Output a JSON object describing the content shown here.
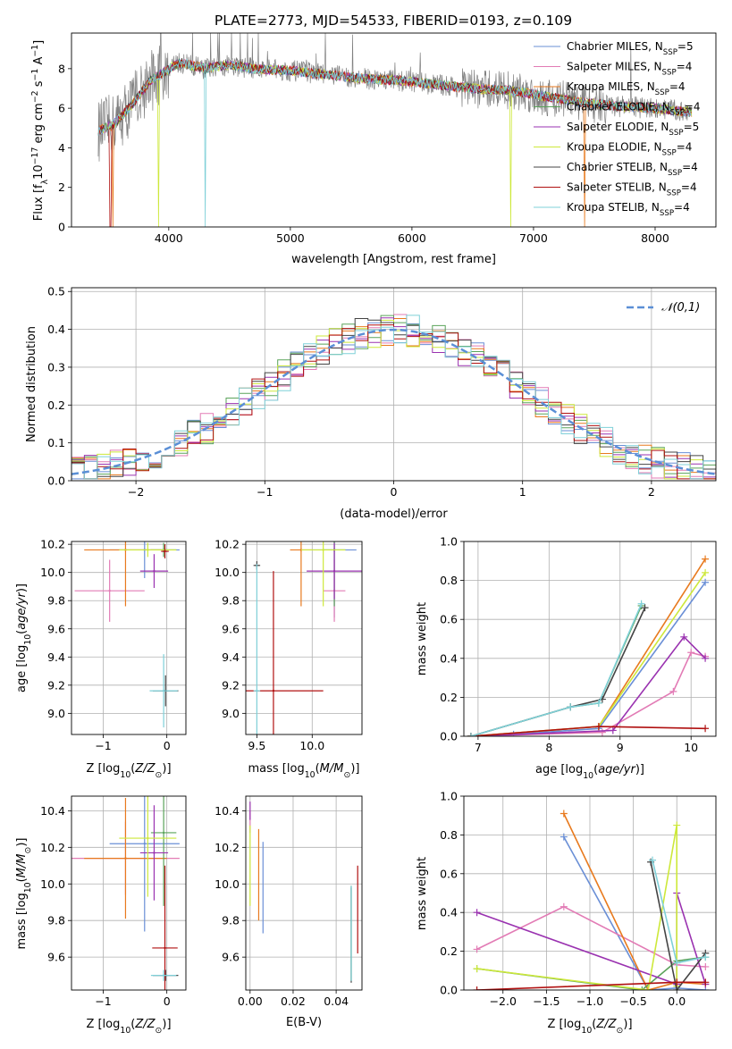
{
  "title": "PLATE=2773, MJD=54533, FIBERID=0193, z=0.109",
  "colors": {
    "chabrier_miles": "#6a8fd6",
    "salpeter_miles": "#e27bb5",
    "kroupa_miles": "#e87a1e",
    "chabrier_elodie": "#5aa35a",
    "salpeter_elodie": "#9a32b0",
    "kroupa_elodie": "#cde83a",
    "chabrier_stelib": "#444444",
    "salpeter_stelib": "#b01010",
    "kroupa_stelib": "#7fd0d8",
    "data": "#808080",
    "normal": "#5b8fd6",
    "grid": "#b0b0b0"
  },
  "chart_data": [
    {
      "type": "line",
      "id": "spectrum",
      "title": "PLATE=2773, MJD=54533, FIBERID=0193, z=0.109",
      "xlabel": "wavelength [Angstrom, rest frame]",
      "ylabel": "Flux [f_λ 10^-17 erg cm^-2 s^-1 A^-1]",
      "xlim": [
        3200,
        8500
      ],
      "ylim": [
        0,
        9.8
      ],
      "xticks": [
        4000,
        5000,
        6000,
        7000,
        8000
      ],
      "yticks": [
        0,
        2,
        4,
        6,
        8
      ],
      "grid": false,
      "legend_position": "top-right",
      "legend": [
        "Chabrier MILES, N_SSP=5",
        "Salpeter MILES, N_SSP=4",
        "Kroupa MILES, N_SSP=4",
        "Chabrier ELODIE, N_SSP=4",
        "Salpeter ELODIE, N_SSP=5",
        "Kroupa ELODIE, N_SSP=4",
        "Chabrier STELIB, N_SSP=4",
        "Salpeter STELIB, N_SSP=4",
        "Kroupa STELIB, N_SSP=4"
      ],
      "continuum": {
        "x": [
          3400,
          3550,
          3700,
          3850,
          4000,
          4100,
          4300,
          4500,
          4700,
          5000,
          5300,
          5600,
          5900,
          6200,
          6500,
          6800,
          7100,
          7400,
          7700,
          8000,
          8300
        ],
        "y": [
          4.8,
          5.2,
          6.2,
          7.4,
          8.0,
          8.3,
          8.0,
          8.2,
          8.0,
          7.9,
          7.7,
          7.5,
          7.4,
          7.2,
          7.0,
          6.9,
          6.6,
          6.3,
          6.1,
          6.0,
          5.8
        ]
      }
    },
    {
      "type": "histogram",
      "id": "residuals",
      "xlabel": "(data-model)/error",
      "ylabel": "Normed distribution",
      "xlim": [
        -2.5,
        2.5
      ],
      "ylim": [
        0,
        0.51
      ],
      "xticks": [
        -2,
        -1,
        0,
        1,
        2
      ],
      "yticks": [
        0.0,
        0.1,
        0.2,
        0.3,
        0.4,
        0.5
      ],
      "grid": true,
      "legend_position": "top-right",
      "legend": [
        "𝒩(0,1)"
      ],
      "normal_curve": {
        "mean": 0,
        "sigma": 1
      }
    },
    {
      "type": "scatter",
      "id": "age-vs-Z",
      "xlabel": "Z [log10(Z/Z⊙)]",
      "ylabel": "age [log10(age/yr)]",
      "xlim": [
        -1.5,
        0.3
      ],
      "ylim": [
        8.85,
        10.22
      ],
      "xticks": [
        -1,
        0
      ],
      "yticks": [
        9.0,
        9.2,
        9.4,
        9.6,
        9.8,
        10.0,
        10.2
      ],
      "grid": true,
      "points": [
        {
          "model": "chabrier_miles",
          "x": -0.35,
          "xerr": 0.55,
          "y": 10.16,
          "yerr": 0.2
        },
        {
          "model": "salpeter_miles",
          "x": -0.9,
          "xerr": 0.55,
          "y": 9.87,
          "yerr": 0.22
        },
        {
          "model": "kroupa_miles",
          "x": -0.65,
          "xerr": 0.65,
          "y": 10.16,
          "yerr": 0.4
        },
        {
          "model": "chabrier_elodie",
          "x": -0.05,
          "xerr": 0.2,
          "y": 10.16,
          "yerr": 0.05
        },
        {
          "model": "salpeter_elodie",
          "x": -0.2,
          "xerr": 0.22,
          "y": 10.01,
          "yerr": 0.12
        },
        {
          "model": "kroupa_elodie",
          "x": -0.3,
          "xerr": 0.45,
          "y": 10.16,
          "yerr": 0.05
        },
        {
          "model": "chabrier_stelib",
          "x": -0.02,
          "xerr": 0.2,
          "y": 9.16,
          "yerr": 0.11
        },
        {
          "model": "salpeter_stelib",
          "x": -0.03,
          "xerr": 0.06,
          "y": 10.15,
          "yerr": 0.05
        },
        {
          "model": "kroupa_stelib",
          "x": -0.05,
          "xerr": 0.22,
          "y": 9.16,
          "yerr": 0.26
        }
      ]
    },
    {
      "type": "scatter",
      "id": "age-vs-mass",
      "xlabel": "mass [log10(M/M⊙)]",
      "ylabel": "",
      "xlim": [
        9.4,
        10.45
      ],
      "ylim": [
        8.85,
        10.22
      ],
      "xticks": [
        9.5,
        10.0
      ],
      "yticks": [
        9.0,
        9.2,
        9.4,
        9.6,
        9.8,
        10.0,
        10.2
      ],
      "grid": true,
      "points": [
        {
          "model": "chabrier_miles",
          "x": 10.2,
          "xerr": 0.2,
          "y": 10.16,
          "yerr": 0.48
        },
        {
          "model": "salpeter_miles",
          "x": 10.2,
          "xerr": 0.1,
          "y": 9.87,
          "yerr": 0.22
        },
        {
          "model": "kroupa_miles",
          "x": 9.9,
          "xerr": 0.1,
          "y": 10.16,
          "yerr": 0.4
        },
        {
          "model": "chabrier_elodie",
          "x": 10.2,
          "xerr": 0.1,
          "y": 10.16,
          "yerr": 0.4
        },
        {
          "model": "salpeter_elodie",
          "x": 10.2,
          "xerr": 0.25,
          "y": 10.01,
          "yerr": 0.2
        },
        {
          "model": "kroupa_elodie",
          "x": 10.1,
          "xerr": 0.2,
          "y": 10.16,
          "yerr": 0.4
        },
        {
          "model": "chabrier_stelib",
          "x": 9.5,
          "xerr": 0.03,
          "y": 10.05,
          "yerr": 0.03
        },
        {
          "model": "salpeter_stelib",
          "x": 9.65,
          "xerr": 0.45,
          "y": 9.16,
          "yerr": 0.85
        },
        {
          "model": "kroupa_stelib",
          "x": 9.5,
          "xerr": 0.03,
          "y": 9.16,
          "yerr": 0.9
        }
      ]
    },
    {
      "type": "line",
      "id": "massweight-vs-age",
      "xlabel": "age [log10(age/yr)]",
      "ylabel": "mass weight",
      "xlim": [
        6.8,
        10.35
      ],
      "ylim": [
        0,
        1.0
      ],
      "xticks": [
        7,
        8,
        9,
        10
      ],
      "yticks": [
        0.0,
        0.2,
        0.4,
        0.6,
        0.8,
        1.0
      ],
      "grid": true,
      "series": [
        {
          "model": "chabrier_miles",
          "x": [
            6.9,
            7.5,
            8.7,
            10.2
          ],
          "y": [
            0.0,
            0.01,
            0.04,
            0.79
          ]
        },
        {
          "model": "salpeter_miles",
          "x": [
            6.9,
            8.75,
            9.75,
            10.0,
            10.2
          ],
          "y": [
            0.0,
            0.02,
            0.23,
            0.43,
            0.41
          ]
        },
        {
          "model": "kroupa_miles",
          "x": [
            6.9,
            8.7,
            10.2
          ],
          "y": [
            0.0,
            0.05,
            0.91
          ]
        },
        {
          "model": "chabrier_elodie",
          "x": [
            6.9,
            8.3,
            8.7,
            9.3
          ],
          "y": [
            0.0,
            0.15,
            0.17,
            0.67
          ]
        },
        {
          "model": "salpeter_elodie",
          "x": [
            6.9,
            8.9,
            9.9,
            10.2
          ],
          "y": [
            0.0,
            0.03,
            0.51,
            0.4
          ]
        },
        {
          "model": "kroupa_elodie",
          "x": [
            6.9,
            8.7,
            10.2
          ],
          "y": [
            0.0,
            0.05,
            0.84
          ]
        },
        {
          "model": "chabrier_stelib",
          "x": [
            6.9,
            8.3,
            8.75,
            9.35
          ],
          "y": [
            0.0,
            0.15,
            0.19,
            0.66
          ]
        },
        {
          "model": "salpeter_stelib",
          "x": [
            6.9,
            8.7,
            10.2
          ],
          "y": [
            0.0,
            0.05,
            0.04
          ]
        },
        {
          "model": "kroupa_stelib",
          "x": [
            6.9,
            8.3,
            8.7,
            9.3
          ],
          "y": [
            0.0,
            0.15,
            0.17,
            0.68
          ]
        }
      ]
    },
    {
      "type": "scatter",
      "id": "mass-vs-Z",
      "xlabel": "Z [log10(Z/Z⊙)]",
      "ylabel": "mass [log10(M/M⊙)]",
      "xlim": [
        -1.5,
        0.3
      ],
      "ylim": [
        9.42,
        10.48
      ],
      "xticks": [
        -1,
        0
      ],
      "yticks": [
        9.6,
        9.8,
        10.0,
        10.2,
        10.4
      ],
      "grid": true,
      "points": [
        {
          "model": "chabrier_miles",
          "x": -0.35,
          "xerr": 0.55,
          "y": 10.22,
          "yerr": 0.48
        },
        {
          "model": "salpeter_miles",
          "x": -0.65,
          "xerr": 0.85,
          "y": 10.14,
          "yerr": 0.2
        },
        {
          "model": "kroupa_miles",
          "x": -0.65,
          "xerr": 0.65,
          "y": 10.14,
          "yerr": 0.33
        },
        {
          "model": "chabrier_elodie",
          "x": -0.05,
          "xerr": 0.2,
          "y": 10.28,
          "yerr": 0.4
        },
        {
          "model": "salpeter_elodie",
          "x": -0.2,
          "xerr": 0.22,
          "y": 10.17,
          "yerr": 0.26
        },
        {
          "model": "kroupa_elodie",
          "x": -0.3,
          "xerr": 0.45,
          "y": 10.25,
          "yerr": 0.32
        },
        {
          "model": "chabrier_stelib",
          "x": -0.02,
          "xerr": 0.2,
          "y": 9.5,
          "yerr": 0.03
        },
        {
          "model": "salpeter_stelib",
          "x": -0.03,
          "xerr": 0.2,
          "y": 9.65,
          "yerr": 0.45
        },
        {
          "model": "kroupa_stelib",
          "x": -0.05,
          "xerr": 0.2,
          "y": 9.5,
          "yerr": 0.03
        }
      ]
    },
    {
      "type": "scatter",
      "id": "mass-vs-EBV",
      "xlabel": "E(B-V)",
      "ylabel": "",
      "xlim": [
        -0.002,
        0.052
      ],
      "ylim": [
        9.42,
        10.48
      ],
      "xticks": [
        0.0,
        0.02,
        0.04
      ],
      "yticks": [
        9.6,
        9.8,
        10.0,
        10.2,
        10.4
      ],
      "grid": true,
      "points": [
        {
          "model": "chabrier_miles",
          "x": 0.006,
          "y": 9.98,
          "yerr": 0.25
        },
        {
          "model": "salpeter_miles",
          "x": 0.0,
          "y": 10.34,
          "yerr": 0.06
        },
        {
          "model": "kroupa_miles",
          "x": 0.004,
          "y": 10.05,
          "yerr": 0.25
        },
        {
          "model": "chabrier_elodie",
          "x": 0.047,
          "y": 9.73,
          "yerr": 0.26
        },
        {
          "model": "salpeter_elodie",
          "x": 0.0,
          "y": 10.4,
          "yerr": 0.05
        },
        {
          "model": "kroupa_elodie",
          "x": 0.0,
          "y": 10.1,
          "yerr": 0.22
        },
        {
          "model": "chabrier_stelib",
          "x": 0.047,
          "y": 9.72,
          "yerr": 0.26
        },
        {
          "model": "salpeter_stelib",
          "x": 0.05,
          "y": 9.86,
          "yerr": 0.24
        },
        {
          "model": "kroupa_stelib",
          "x": 0.047,
          "y": 9.73,
          "yerr": 0.26
        }
      ]
    },
    {
      "type": "line",
      "id": "massweight-vs-Z",
      "xlabel": "Z [log10(Z/Z⊙)]",
      "ylabel": "mass weight",
      "xlim": [
        -2.45,
        0.45
      ],
      "ylim": [
        0,
        1.0
      ],
      "xticks": [
        -2.0,
        -1.5,
        -1.0,
        -0.5,
        0.0
      ],
      "yticks": [
        0.0,
        0.2,
        0.4,
        0.6,
        0.8,
        1.0
      ],
      "grid": true,
      "series": [
        {
          "model": "chabrier_miles",
          "x": [
            -1.3,
            -0.33,
            0.0,
            0.33
          ],
          "y": [
            0.79,
            0.0,
            0.01,
            0.0
          ]
        },
        {
          "model": "salpeter_miles",
          "x": [
            -2.3,
            -1.3,
            0.0,
            0.33
          ],
          "y": [
            0.21,
            0.43,
            0.13,
            0.12
          ]
        },
        {
          "model": "kroupa_miles",
          "x": [
            -1.3,
            -0.33,
            0.0,
            0.33
          ],
          "y": [
            0.91,
            0.0,
            0.04,
            0.03
          ]
        },
        {
          "model": "chabrier_elodie",
          "x": [
            -2.3,
            -0.4,
            0.0,
            0.33
          ],
          "y": [
            0.11,
            0.0,
            0.15,
            0.17
          ]
        },
        {
          "model": "salpeter_elodie",
          "x": [
            -2.3,
            0.0,
            0.0,
            0.33
          ],
          "y": [
            0.4,
            0.03,
            0.5,
            0.03
          ]
        },
        {
          "model": "kroupa_elodie",
          "x": [
            -2.3,
            -0.33,
            0.0,
            0.0
          ],
          "y": [
            0.11,
            0.0,
            0.85,
            0.02
          ]
        },
        {
          "model": "chabrier_stelib",
          "x": [
            -0.3,
            0.0,
            0.33
          ],
          "y": [
            0.66,
            0.0,
            0.19
          ]
        },
        {
          "model": "salpeter_stelib",
          "x": [
            -2.3,
            0.0,
            0.33
          ],
          "y": [
            0.0,
            0.04,
            0.04
          ]
        },
        {
          "model": "kroupa_stelib",
          "x": [
            -0.28,
            0.0,
            0.33
          ],
          "y": [
            0.67,
            0.14,
            0.17
          ]
        }
      ]
    }
  ]
}
